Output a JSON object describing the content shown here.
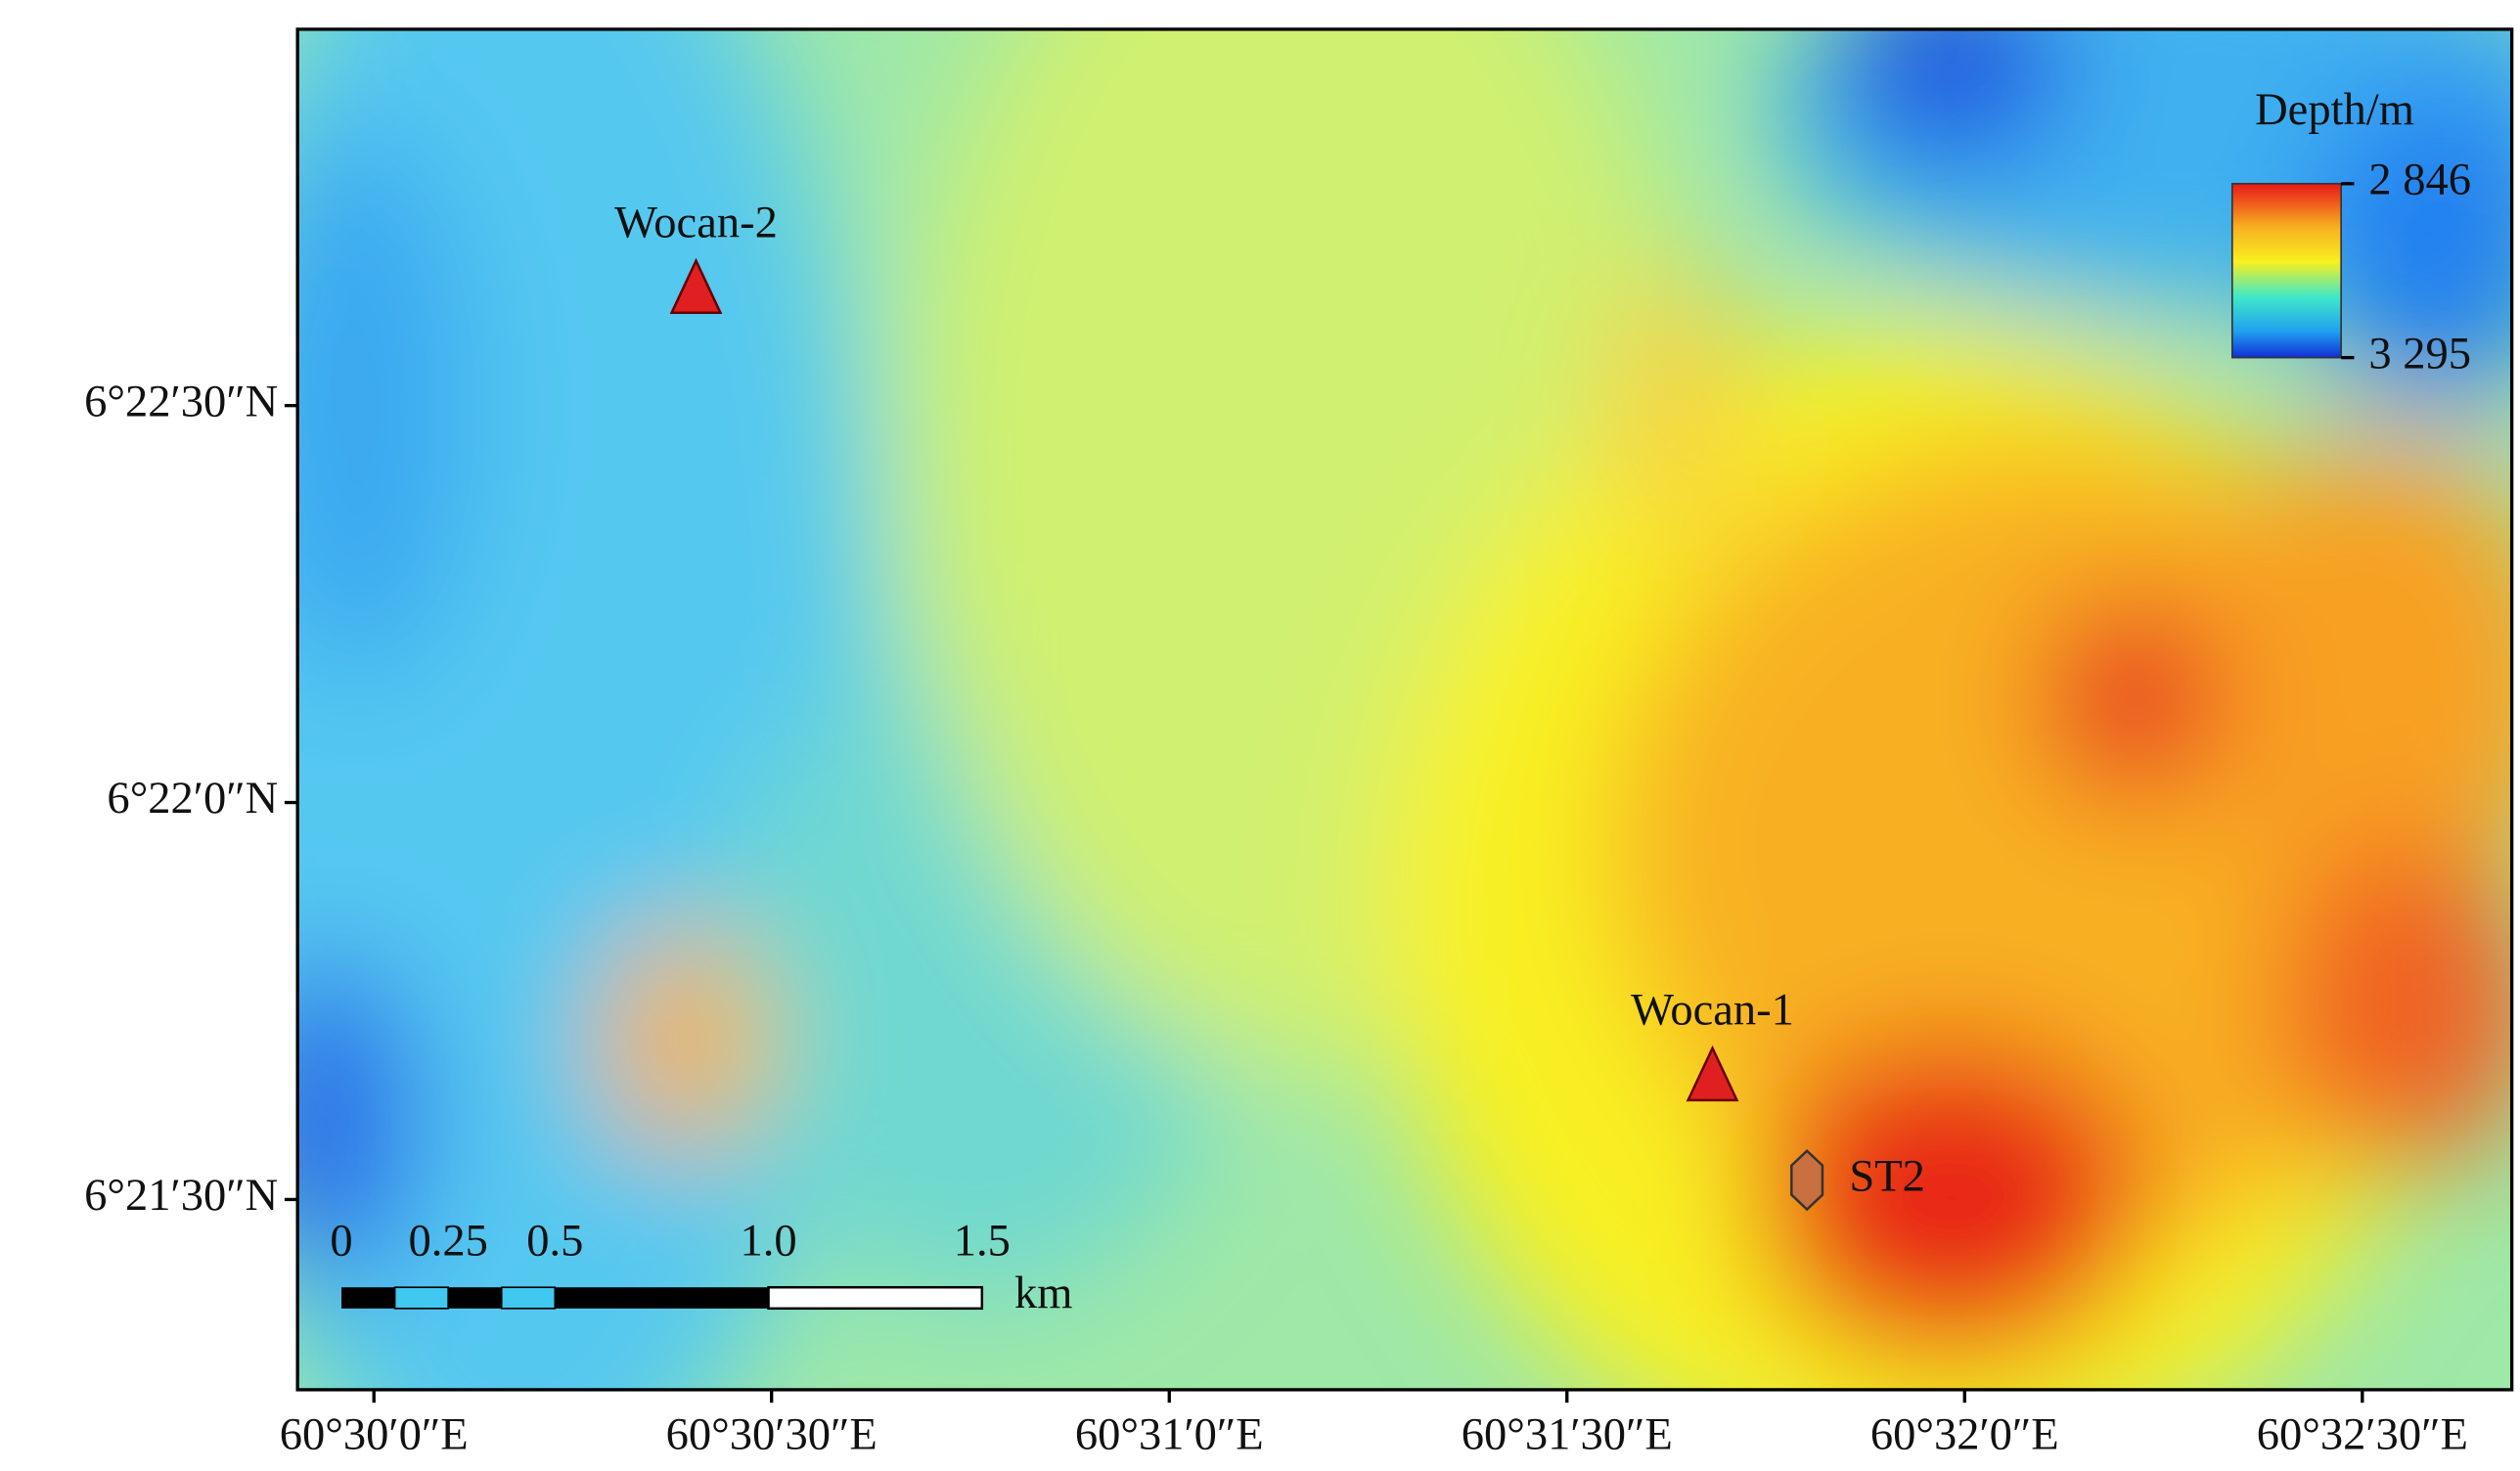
{
  "map": {
    "xlim": [
      60.4984,
      60.5448
    ],
    "ylim": [
      6.35434,
      6.3829
    ],
    "xticks": [
      {
        "value": 60.5,
        "label": "60°30′0″E"
      },
      {
        "value": 60.508333,
        "label": "60°30′30″E"
      },
      {
        "value": 60.516667,
        "label": "60°31′0″E"
      },
      {
        "value": 60.525,
        "label": "60°31′30″E"
      },
      {
        "value": 60.533333,
        "label": "60°32′0″E"
      },
      {
        "value": 60.541667,
        "label": "60°32′30″E"
      }
    ],
    "yticks": [
      {
        "value": 6.375,
        "label": "6°22′30″N"
      },
      {
        "value": 6.366667,
        "label": "6°22′0″N"
      },
      {
        "value": 6.358333,
        "label": "6°21′30″N"
      }
    ],
    "points": [
      {
        "name": "Wocan-2",
        "lon": 60.50675,
        "lat": 6.37746,
        "marker": "triangle",
        "color": "#e02020"
      },
      {
        "name": "Wocan-1",
        "lon": 60.52805,
        "lat": 6.36093,
        "marker": "triangle",
        "color": "#e02020"
      },
      {
        "name": "ST2",
        "lon": 60.53003,
        "lat": 6.35874,
        "marker": "hexagon",
        "color": "#c87040"
      }
    ],
    "legend": {
      "title": "Depth/m",
      "range": [
        {
          "value": 2846,
          "label": "2 846"
        },
        {
          "value": 3295,
          "label": "3 295"
        }
      ]
    },
    "scale_bar": {
      "ticks": [
        0,
        0.25,
        0.5,
        {
          "value": 1,
          "label": "1.0"
        },
        1.5
      ],
      "unit": "km"
    }
  }
}
